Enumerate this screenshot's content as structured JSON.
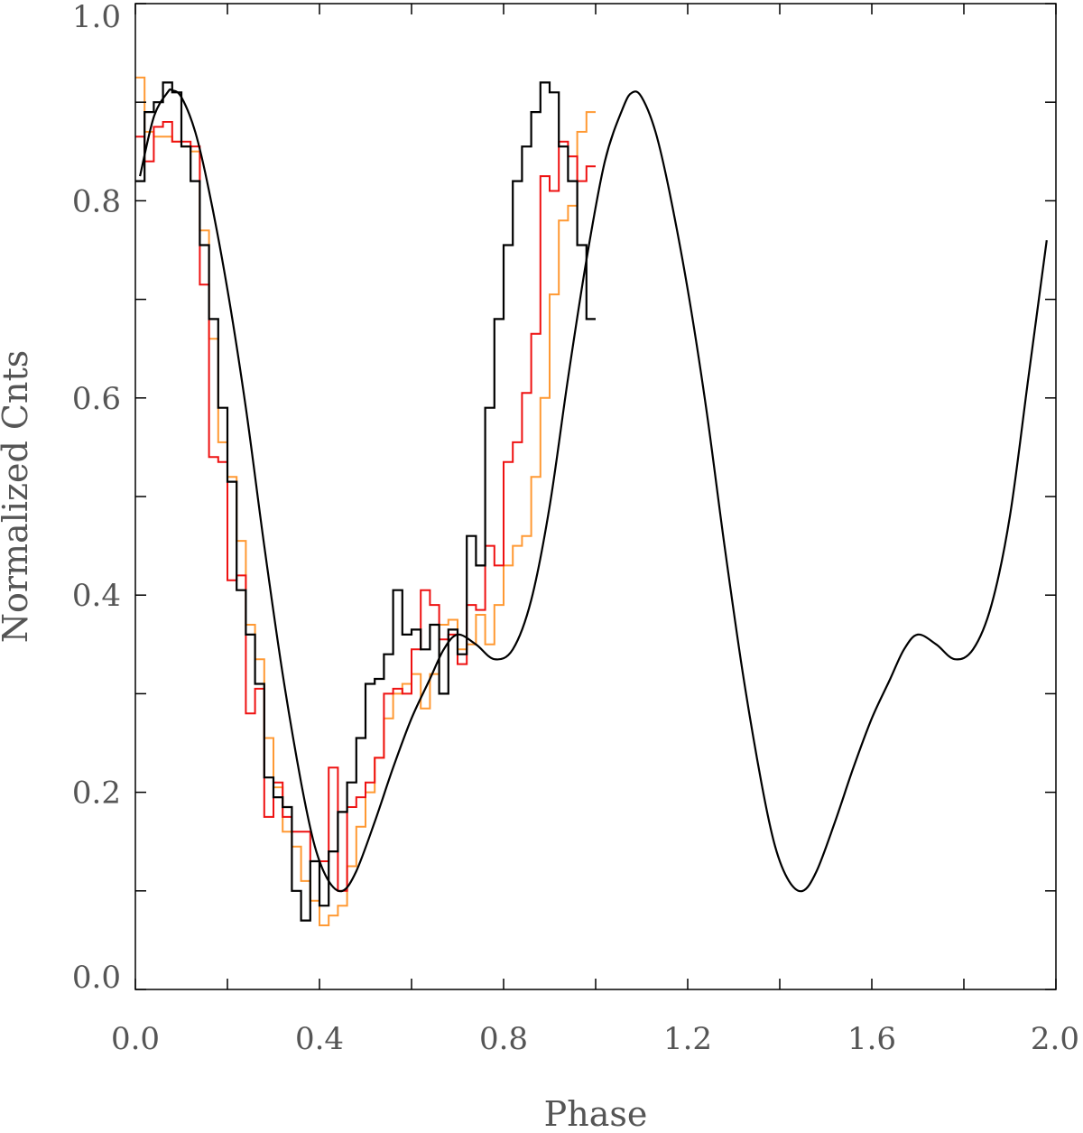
{
  "chart_data": {
    "type": "line",
    "title": "",
    "xlabel": "Phase",
    "ylabel": "Normalized Cnts",
    "xlim": [
      0.0,
      2.0
    ],
    "ylim": [
      0.0,
      1.0
    ],
    "x_ticks_labeled": [
      "0.0",
      "0.4",
      "0.8",
      "1.2",
      "1.6",
      "2.0"
    ],
    "y_ticks_labeled": [
      "0.0",
      "0.2",
      "0.4",
      "0.6",
      "0.8",
      "1.0"
    ],
    "x_tick_values": [
      0.0,
      0.2,
      0.4,
      0.6,
      0.8,
      1.0,
      1.2,
      1.4,
      1.6,
      1.8,
      2.0
    ],
    "y_tick_values": [
      0.0,
      0.1,
      0.2,
      0.3,
      0.4,
      0.5,
      0.6,
      0.7,
      0.8,
      0.9,
      1.0
    ],
    "grid": false,
    "legend": "none",
    "bin_width": 0.02,
    "bin_count": 50,
    "series": [
      {
        "color": "#ff9933",
        "style": "step",
        "values": [
          0.925,
          0.87,
          0.865,
          0.865,
          0.86,
          0.855,
          0.85,
          0.77,
          0.66,
          0.555,
          0.52,
          0.455,
          0.37,
          0.335,
          0.255,
          0.205,
          0.16,
          0.145,
          0.11,
          0.09,
          0.065,
          0.075,
          0.085,
          0.125,
          0.165,
          0.2,
          0.235,
          0.275,
          0.3,
          0.31,
          0.32,
          0.285,
          0.32,
          0.37,
          0.375,
          0.345,
          0.35,
          0.38,
          0.35,
          0.39,
          0.43,
          0.45,
          0.46,
          0.52,
          0.6,
          0.705,
          0.78,
          0.795,
          0.87,
          0.89
        ]
      },
      {
        "color": "#ee1111",
        "style": "step",
        "values": [
          0.865,
          0.84,
          0.875,
          0.88,
          0.86,
          0.86,
          0.855,
          0.715,
          0.54,
          0.535,
          0.415,
          0.42,
          0.28,
          0.305,
          0.175,
          0.21,
          0.175,
          0.16,
          0.16,
          0.13,
          0.13,
          0.225,
          0.1,
          0.185,
          0.195,
          0.21,
          0.235,
          0.3,
          0.305,
          0.3,
          0.345,
          0.405,
          0.39,
          0.355,
          0.36,
          0.33,
          0.39,
          0.385,
          0.45,
          0.43,
          0.535,
          0.555,
          0.605,
          0.665,
          0.825,
          0.81,
          0.86,
          0.845,
          0.82,
          0.835
        ]
      },
      {
        "color": "#000000",
        "style": "step",
        "values": [
          0.82,
          0.89,
          0.9,
          0.92,
          0.91,
          0.855,
          0.82,
          0.755,
          0.68,
          0.59,
          0.515,
          0.405,
          0.36,
          0.31,
          0.215,
          0.195,
          0.185,
          0.1,
          0.07,
          0.13,
          0.085,
          0.14,
          0.18,
          0.21,
          0.255,
          0.31,
          0.315,
          0.34,
          0.405,
          0.36,
          0.365,
          0.345,
          0.37,
          0.3,
          0.365,
          0.34,
          0.46,
          0.43,
          0.59,
          0.68,
          0.755,
          0.82,
          0.855,
          0.89,
          0.92,
          0.91,
          0.855,
          0.82,
          0.755,
          0.68
        ]
      },
      {
        "color": "#000000",
        "style": "smooth",
        "x": [
          0.01,
          0.04,
          0.07,
          0.08,
          0.1,
          0.13,
          0.16,
          0.2,
          0.24,
          0.28,
          0.32,
          0.36,
          0.39,
          0.42,
          0.45,
          0.48,
          0.52,
          0.56,
          0.6,
          0.64,
          0.67,
          0.7,
          0.74,
          0.78,
          0.82,
          0.86,
          0.9,
          0.94,
          0.98,
          1.02,
          1.06,
          1.08,
          1.1,
          1.13,
          1.16,
          1.2,
          1.24,
          1.28,
          1.32,
          1.36,
          1.39,
          1.42,
          1.45,
          1.48,
          1.52,
          1.56,
          1.6,
          1.64,
          1.67,
          1.7,
          1.74,
          1.78,
          1.82,
          1.86,
          1.9,
          1.94,
          1.98
        ],
        "values": [
          0.825,
          0.885,
          0.91,
          0.912,
          0.905,
          0.87,
          0.81,
          0.71,
          0.59,
          0.45,
          0.32,
          0.21,
          0.145,
          0.11,
          0.1,
          0.12,
          0.17,
          0.225,
          0.275,
          0.315,
          0.345,
          0.36,
          0.35,
          0.335,
          0.345,
          0.395,
          0.49,
          0.62,
          0.74,
          0.84,
          0.895,
          0.91,
          0.905,
          0.87,
          0.81,
          0.71,
          0.59,
          0.45,
          0.32,
          0.21,
          0.145,
          0.11,
          0.1,
          0.12,
          0.17,
          0.225,
          0.275,
          0.315,
          0.345,
          0.36,
          0.35,
          0.335,
          0.345,
          0.39,
          0.48,
          0.62,
          0.76
        ]
      }
    ]
  }
}
